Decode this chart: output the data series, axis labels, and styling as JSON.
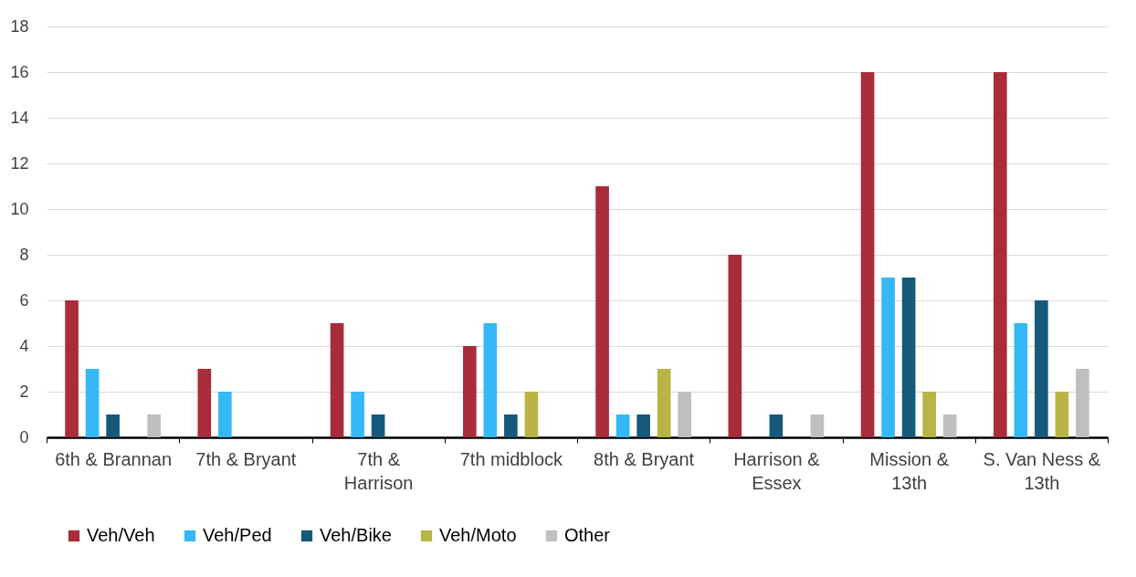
{
  "chart_data": {
    "type": "bar",
    "categories": [
      "6th & Brannan",
      "7th & Bryant",
      "7th & Harrison",
      "7th midblock",
      "8th & Bryant",
      "Harrison & Essex",
      "Mission & 13th",
      "S. Van Ness & 13th"
    ],
    "series": [
      {
        "name": "Veh/Veh",
        "color": "#a92c3a",
        "values": [
          6,
          3,
          5,
          4,
          11,
          8,
          16,
          16
        ]
      },
      {
        "name": "Veh/Ped",
        "color": "#35b8f7",
        "values": [
          3,
          2,
          2,
          5,
          1,
          0,
          7,
          5
        ]
      },
      {
        "name": "Veh/Bike",
        "color": "#155a7b",
        "values": [
          1,
          0,
          1,
          1,
          1,
          1,
          7,
          6
        ]
      },
      {
        "name": "Veh/Moto",
        "color": "#b9b544",
        "values": [
          0,
          0,
          0,
          2,
          3,
          0,
          2,
          2
        ]
      },
      {
        "name": "Other",
        "color": "#bfbfbf",
        "values": [
          1,
          0,
          0,
          0,
          2,
          1,
          1,
          3
        ]
      }
    ],
    "ylim": [
      0,
      18
    ],
    "yticks": [
      0,
      2,
      4,
      6,
      8,
      10,
      12,
      14,
      16,
      18
    ],
    "grid": "y",
    "legend": "bottom"
  }
}
